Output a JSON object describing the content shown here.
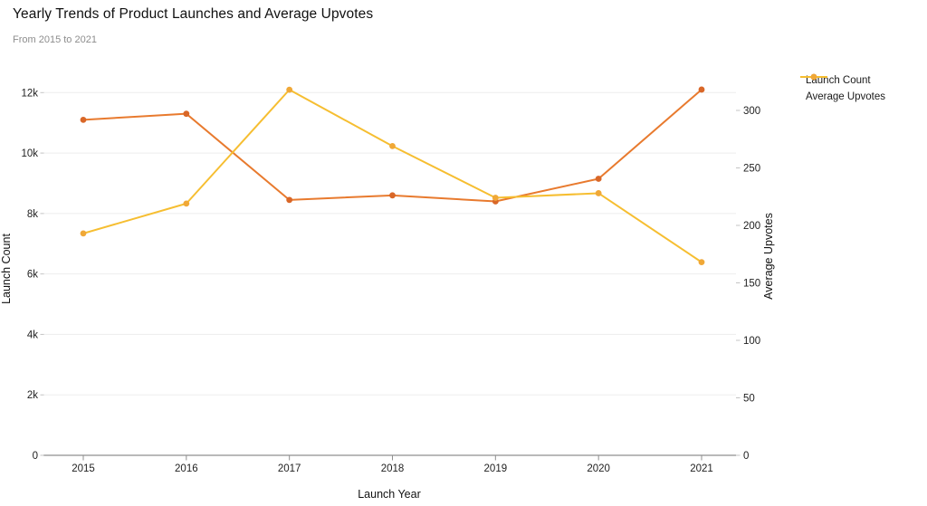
{
  "chart_data": {
    "type": "line",
    "title": "Yearly Trends of Product Launches and Average Upvotes",
    "subtitle": "From 2015 to 2021",
    "x_categories": [
      "2015",
      "2016",
      "2017",
      "2018",
      "2019",
      "2020",
      "2021"
    ],
    "xlabel": "Launch Year",
    "grid": true,
    "legend_position": "top-right-outside",
    "axes": {
      "left": {
        "label": "Launch Count",
        "tick_labels": [
          "0",
          "2k",
          "4k",
          "6k",
          "8k",
          "10k",
          "12k"
        ],
        "tick_values": [
          0,
          2000,
          4000,
          6000,
          8000,
          10000,
          12000
        ],
        "range": [
          0,
          12000
        ]
      },
      "right": {
        "label": "Average Upvotes",
        "tick_labels": [
          "0",
          "50",
          "100",
          "150",
          "200",
          "250",
          "300"
        ],
        "tick_values": [
          0,
          50,
          100,
          150,
          200,
          250,
          300
        ],
        "range": [
          0,
          300
        ]
      }
    },
    "series": [
      {
        "name": "Launch Count",
        "yaxis": "left",
        "color": "#e87a2e",
        "marker_color": "#d96728",
        "values": [
          11100,
          11300,
          8450,
          8600,
          8400,
          9150,
          12100
        ]
      },
      {
        "name": "Average Upvotes",
        "yaxis": "right",
        "color": "#f6be31",
        "marker_color": "#f0a837",
        "values": [
          193,
          219,
          318,
          269,
          224,
          228,
          168
        ]
      }
    ],
    "colors": {
      "gridline": "#ededed",
      "axis_line": "#8f8f8f",
      "tick_dash": "#c4c4c4"
    }
  }
}
